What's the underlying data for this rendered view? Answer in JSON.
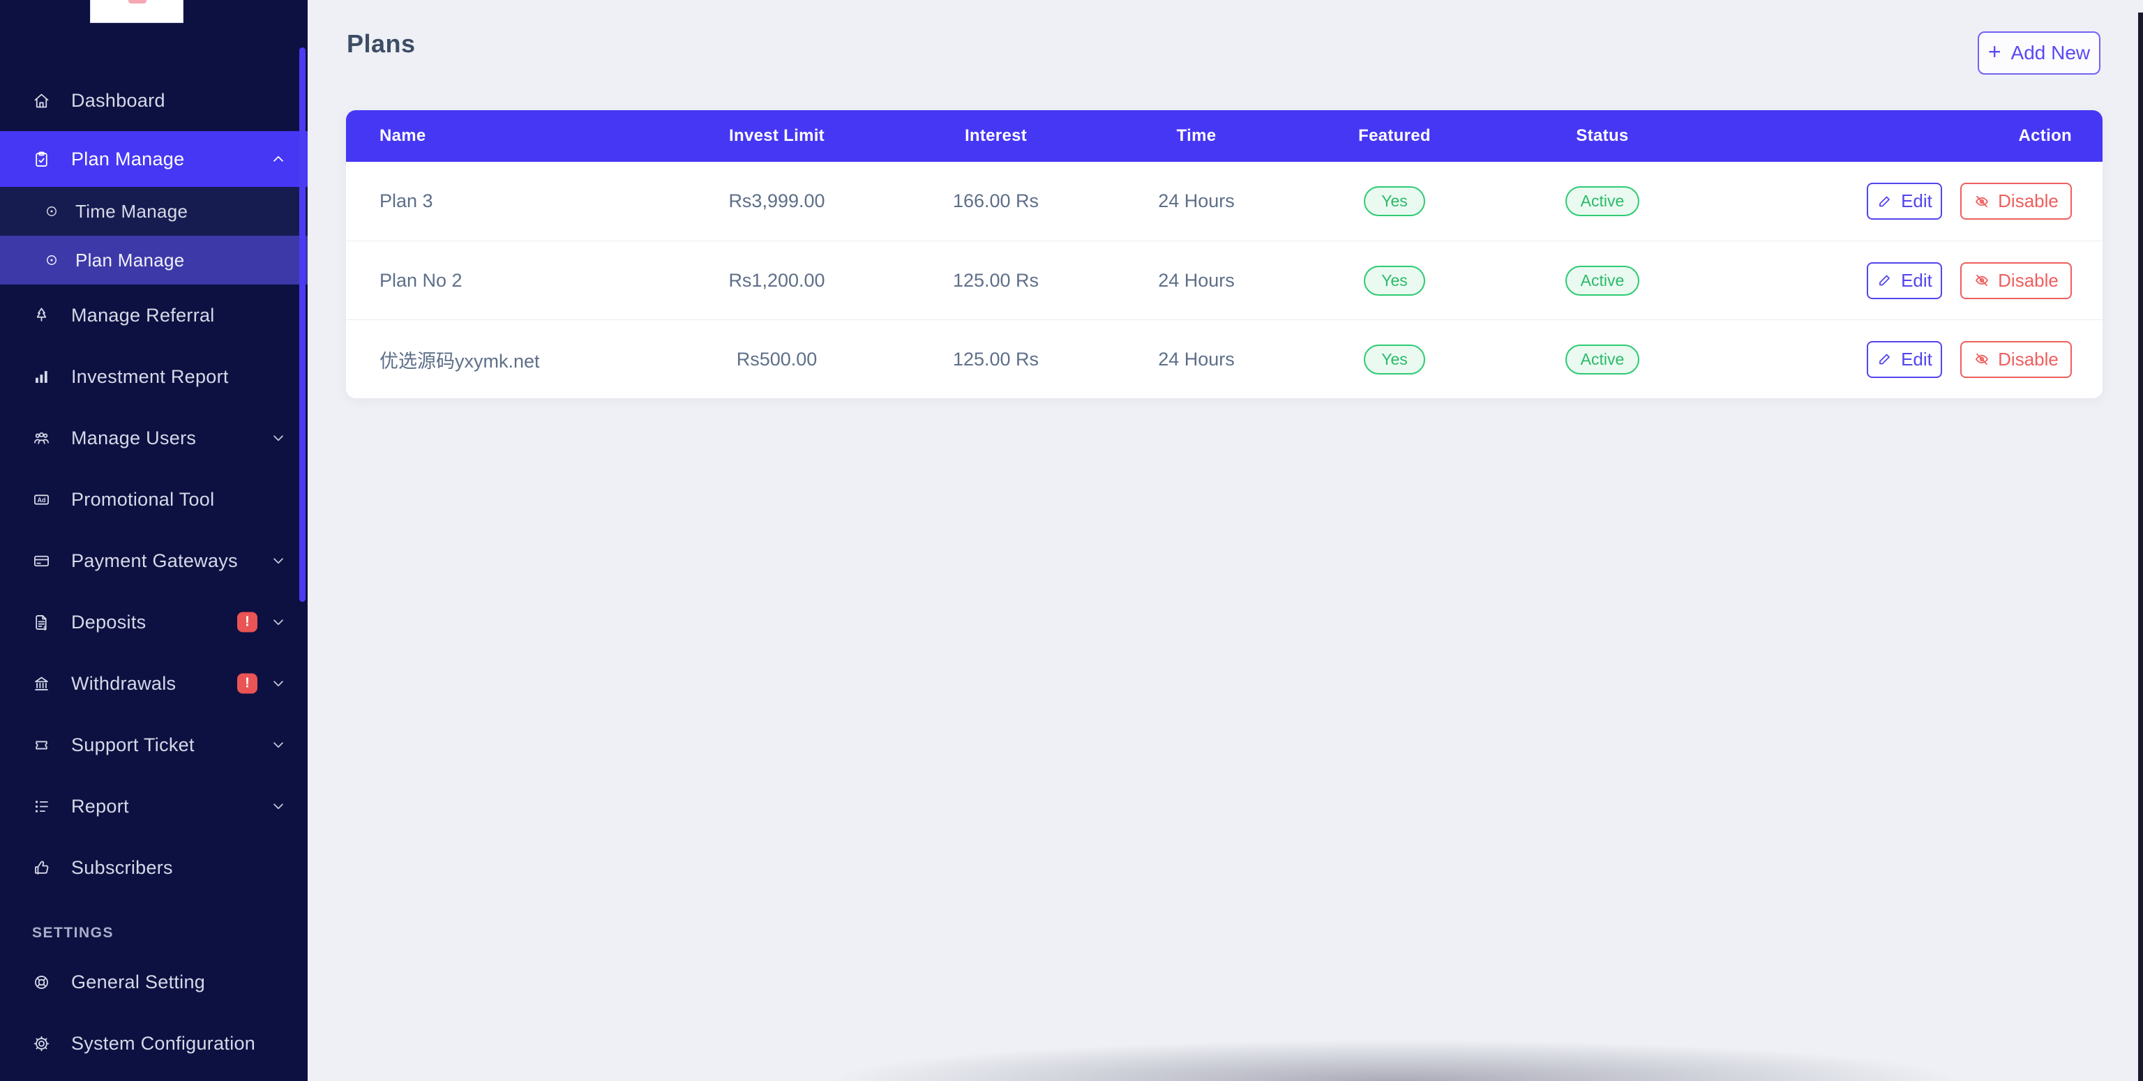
{
  "colors": {
    "sidebar_bg": "#0d1141",
    "accent_indigo": "#4637f4",
    "badge_red": "#ea5455",
    "success_green": "#2dcb73",
    "danger_red": "#ef5e5e",
    "edit_indigo": "#5245ee"
  },
  "sidebar": {
    "section_label": "SETTINGS",
    "items": [
      {
        "label": "Dashboard",
        "icon": "home"
      },
      {
        "label": "Plan Manage",
        "icon": "clipboard",
        "active": true,
        "chevron": "up"
      },
      {
        "label": "Time Manage",
        "icon": "circle-dot",
        "sub": true
      },
      {
        "label": "Plan Manage",
        "icon": "circle-dot",
        "sub": true,
        "subActive": true
      },
      {
        "label": "Manage Referral",
        "icon": "tree"
      },
      {
        "label": "Investment Report",
        "icon": "bar-chart"
      },
      {
        "label": "Manage Users",
        "icon": "users",
        "chevron": "down"
      },
      {
        "label": "Promotional Tool",
        "icon": "ad"
      },
      {
        "label": "Payment Gateways",
        "icon": "credit-card",
        "chevron": "down"
      },
      {
        "label": "Deposits",
        "icon": "file-dollar",
        "badge": "!",
        "chevron": "down"
      },
      {
        "label": "Withdrawals",
        "icon": "bank",
        "badge": "!",
        "chevron": "down"
      },
      {
        "label": "Support Ticket",
        "icon": "ticket",
        "chevron": "down"
      },
      {
        "label": "Report",
        "icon": "list",
        "chevron": "down"
      },
      {
        "label": "Subscribers",
        "icon": "thumb-up"
      }
    ],
    "settings_items": [
      {
        "label": "General Setting",
        "icon": "ring"
      },
      {
        "label": "System Configuration",
        "icon": "gear"
      }
    ]
  },
  "header": {
    "title": "Plans",
    "add_button_label": "Add New",
    "add_button_plus": "+"
  },
  "table": {
    "columns": [
      "Name",
      "Invest Limit",
      "Interest",
      "Time",
      "Featured",
      "Status",
      "Action"
    ],
    "rows": [
      {
        "name": "Plan 3",
        "invest_limit": "Rs3,999.00",
        "interest": "166.00 Rs",
        "time": "24 Hours",
        "featured": "Yes",
        "status": "Active",
        "edit_label": "Edit",
        "disable_label": "Disable"
      },
      {
        "name": "Plan No 2",
        "invest_limit": "Rs1,200.00",
        "interest": "125.00 Rs",
        "time": "24 Hours",
        "featured": "Yes",
        "status": "Active",
        "edit_label": "Edit",
        "disable_label": "Disable"
      },
      {
        "name": "优选源码yxymk.net",
        "invest_limit": "Rs500.00",
        "interest": "125.00 Rs",
        "time": "24 Hours",
        "featured": "Yes",
        "status": "Active",
        "edit_label": "Edit",
        "disable_label": "Disable"
      }
    ]
  }
}
